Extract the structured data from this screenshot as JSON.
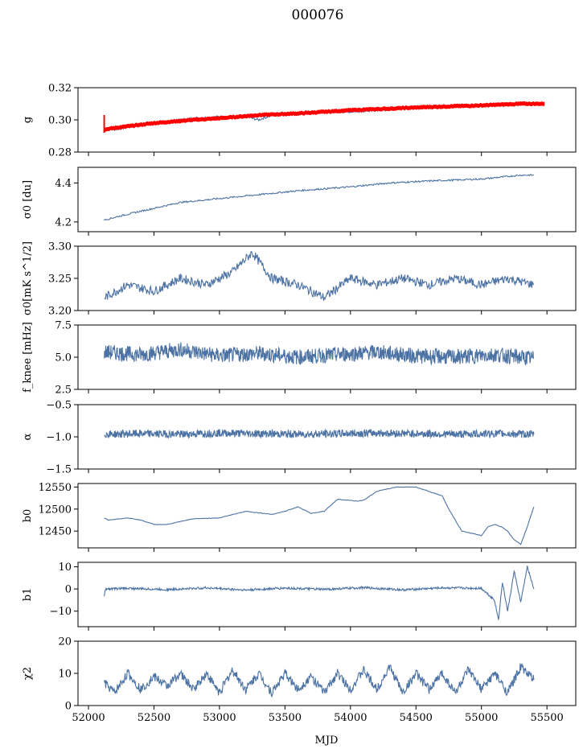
{
  "title": "000076",
  "chart_data": {
    "type": "line",
    "title": "000076",
    "xlabel": "MJD",
    "xlim": [
      51920,
      55720
    ],
    "xticks": [
      52000,
      52500,
      53000,
      53500,
      54000,
      54500,
      55000,
      55500
    ],
    "xtick_labels": [
      "52000",
      "52500",
      "53000",
      "53500",
      "54000",
      "54500",
      "55000",
      "55500"
    ],
    "line_color": "#4c72a4",
    "secondary_color": "#ff0000",
    "panels": [
      {
        "id": "g",
        "ylabel": "g",
        "ylim": [
          0.28,
          0.32
        ],
        "yticks": [
          0.28,
          0.3,
          0.32
        ],
        "ytick_labels": [
          "0.28",
          "0.30",
          "0.32"
        ],
        "series": [
          {
            "kind": "line",
            "x": [
              52120,
              52200,
              52500,
              52800,
              53000,
              53100,
              53200,
              53300,
              53400,
              53600,
              53800,
              54000,
              54200,
              54400,
              54600,
              54800,
              55000,
              55200,
              55400
            ],
            "y": [
              0.294,
              0.294,
              0.298,
              0.301,
              0.302,
              0.301,
              0.302,
              0.3,
              0.303,
              0.304,
              0.305,
              0.305,
              0.306,
              0.307,
              0.308,
              0.309,
              0.309,
              0.309,
              0.31
            ]
          },
          {
            "kind": "band",
            "x": [
              52120,
              52200,
              52500,
              52800,
              53000,
              53300,
              53600,
              54000,
              54300,
              54600,
              55000,
              55300,
              55480
            ],
            "y": [
              0.294,
              0.295,
              0.298,
              0.3,
              0.301,
              0.303,
              0.304,
              0.306,
              0.307,
              0.308,
              0.309,
              0.31,
              0.31
            ]
          }
        ]
      },
      {
        "id": "sigma0_du",
        "ylabel": "σ0 [du]",
        "ylim": [
          4.15,
          4.48
        ],
        "yticks": [
          4.2,
          4.4
        ],
        "ytick_labels": [
          "4.2",
          "4.4"
        ],
        "series": [
          {
            "kind": "line",
            "x": [
              52120,
              52300,
              52500,
              52700,
              53000,
              53300,
              53600,
              54000,
              54300,
              54600,
              55000,
              55300,
              55400
            ],
            "y": [
              4.21,
              4.24,
              4.27,
              4.3,
              4.32,
              4.34,
              4.36,
              4.38,
              4.4,
              4.41,
              4.42,
              4.44,
              4.44
            ]
          }
        ]
      },
      {
        "id": "sigma0_mk",
        "ylabel": "σ0[mK s^1/2]",
        "ylim": [
          3.2,
          3.3
        ],
        "yticks": [
          3.2,
          3.25,
          3.3
        ],
        "ytick_labels": [
          "3.20",
          "3.25",
          "3.30"
        ],
        "series": [
          {
            "kind": "line",
            "x": [
              52120,
              52300,
              52500,
              52700,
              52900,
              53100,
              53250,
              53400,
              53600,
              53800,
              54000,
              54200,
              54400,
              54600,
              54800,
              55000,
              55200,
              55400
            ],
            "y": [
              3.22,
              3.24,
              3.23,
              3.25,
              3.24,
              3.26,
              3.29,
              3.25,
              3.24,
              3.22,
              3.25,
              3.24,
              3.25,
              3.24,
              3.25,
              3.24,
              3.25,
              3.24
            ]
          }
        ]
      },
      {
        "id": "fknee",
        "ylabel": "f_knee [mHz]",
        "ylim": [
          2.5,
          7.5
        ],
        "yticks": [
          2.5,
          5.0,
          7.5
        ],
        "ytick_labels": [
          "2.5",
          "5.0",
          "7.5"
        ],
        "series": [
          {
            "kind": "line",
            "x": [
              52120,
              52400,
              52700,
              53000,
              53300,
              53600,
              53900,
              54200,
              54500,
              54800,
              55100,
              55400
            ],
            "y": [
              5.4,
              5.2,
              5.6,
              5.1,
              5.3,
              5.0,
              5.2,
              5.4,
              5.1,
              5.0,
              5.2,
              4.9
            ]
          }
        ]
      },
      {
        "id": "alpha",
        "ylabel": "α",
        "ylim": [
          -1.5,
          -0.5
        ],
        "yticks": [
          -1.5,
          -1.0,
          -0.5
        ],
        "ytick_labels": [
          "−1.5",
          "−1.0",
          "−0.5"
        ],
        "series": [
          {
            "kind": "line",
            "x": [
              52120,
              52400,
              52700,
              53000,
              53300,
              53600,
              53900,
              54200,
              54500,
              54800,
              55100,
              55400
            ],
            "y": [
              -0.96,
              -0.95,
              -0.96,
              -0.94,
              -0.95,
              -0.96,
              -0.95,
              -0.94,
              -0.95,
              -0.96,
              -0.95,
              -0.96
            ]
          }
        ]
      },
      {
        "id": "b0",
        "ylabel": "b0",
        "ylim": [
          12412,
          12558
        ],
        "yticks": [
          12450,
          12500,
          12550
        ],
        "ytick_labels": [
          "12450",
          "12500",
          "12550"
        ],
        "series": [
          {
            "kind": "line",
            "x": [
              52120,
              52150,
              52300,
              52400,
              52500,
              52600,
              52800,
              53000,
              53200,
              53400,
              53500,
              53600,
              53700,
              53800,
              53900,
              54000,
              54050,
              54100,
              54200,
              54350,
              54500,
              54600,
              54700,
              54750,
              54850,
              55000,
              55050,
              55100,
              55150,
              55200,
              55250,
              55300,
              55350,
              55400
            ],
            "y": [
              12480,
              12475,
              12480,
              12475,
              12465,
              12465,
              12478,
              12480,
              12495,
              12488,
              12495,
              12505,
              12490,
              12495,
              12522,
              12520,
              12518,
              12520,
              12540,
              12550,
              12550,
              12540,
              12530,
              12500,
              12450,
              12440,
              12460,
              12465,
              12460,
              12450,
              12430,
              12420,
              12460,
              12505
            ]
          }
        ]
      },
      {
        "id": "b1",
        "ylabel": "b1",
        "ylim": [
          -17,
          12
        ],
        "yticks": [
          -10,
          0,
          10
        ],
        "ytick_labels": [
          "−10",
          "0",
          "10"
        ],
        "series": [
          {
            "kind": "line",
            "x": [
              52120,
              52130,
              52300,
              52600,
              52900,
              53200,
              53500,
              53800,
              54100,
              54400,
              54700,
              55000,
              55100,
              55130,
              55160,
              55200,
              55250,
              55300,
              55350,
              55400
            ],
            "y": [
              -3,
              0,
              0.3,
              -0.3,
              0.5,
              -0.5,
              0.4,
              -0.2,
              0.6,
              -0.4,
              0.5,
              0.3,
              -5,
              -14,
              3,
              -10,
              8,
              -6,
              10,
              0
            ]
          }
        ]
      },
      {
        "id": "chi2",
        "ylabel": "χ2",
        "ylim": [
          0,
          20
        ],
        "yticks": [
          0,
          10,
          20
        ],
        "ytick_labels": [
          "0",
          "10",
          "20"
        ],
        "series": [
          {
            "kind": "line",
            "x": [
              52120,
              52200,
              52300,
              52400,
              52500,
              52600,
              52700,
              52800,
              52900,
              53000,
              53100,
              53200,
              53300,
              53400,
              53500,
              53600,
              53700,
              53800,
              53900,
              54000,
              54100,
              54200,
              54300,
              54400,
              54500,
              54600,
              54700,
              54800,
              54900,
              55000,
              55100,
              55200,
              55300,
              55400
            ],
            "y": [
              7,
              4,
              10,
              5,
              9,
              6,
              10,
              5,
              10,
              4,
              11,
              5,
              10,
              4,
              10,
              5,
              9,
              4,
              10,
              5,
              11,
              5,
              12,
              4,
              10,
              5,
              10,
              4,
              11,
              5,
              10,
              4,
              12,
              8
            ]
          }
        ]
      }
    ]
  }
}
